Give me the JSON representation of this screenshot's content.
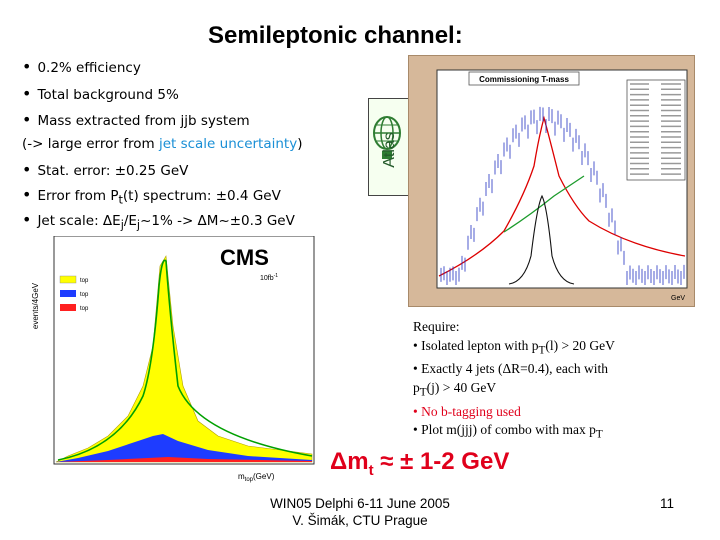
{
  "title": "Semileptonic channel:",
  "bullets": {
    "b1": "0.2% efficiency",
    "b2": "Total background 5%",
    "b3": "Mass extracted from jjb system",
    "b4_prefix": "(-> large error from ",
    "b4_highlight": "jet scale uncertainty",
    "b4_suffix": ")",
    "b5": "Stat. error: ±0.25 GeV",
    "b6_pre": "Error from P",
    "b6_sub": "t",
    "b6_post": "(t) spectrum: ±0.4 GeV",
    "b7_pre": "Jet scale: ΔE",
    "b7_sub1": "j",
    "b7_mid": "/E",
    "b7_sub2": "j",
    "b7_post": "~1% -> ΔM~±0.3 GeV"
  },
  "atlas_label": "Atlas",
  "atlas_plot": {
    "title": "Commissioning T-mass",
    "xlabel": "GeV",
    "x_ticks": [
      "0",
      "50",
      "100",
      "150",
      "200",
      "250",
      "300",
      "350"
    ],
    "y_ticks": [
      "20",
      "40",
      "60",
      "80",
      "100",
      "120",
      "140",
      "160",
      "180"
    ],
    "stats_lines": 18
  },
  "cms_plot": {
    "logo": "CMS",
    "lumi": "10fb",
    "lumi_sup": "-1",
    "ylabel": "events/4GeV",
    "xlabel": "m",
    "xlabel_sub": "top",
    "xlabel_unit": "(GeV)",
    "legend": [
      {
        "label": "top",
        "color": "#ffff00"
      },
      {
        "label": "top",
        "color": "#1e3cff"
      },
      {
        "label": "top",
        "color": "#ff2020"
      }
    ]
  },
  "require": {
    "heading": "Require:",
    "l1_pre": "• Isolated lepton with p",
    "l1_sub": "T",
    "l1_post": "(l) > 20 GeV",
    "l2": "• Exactly 4 jets (ΔR=0.4), each with",
    "l3_pre": "p",
    "l3_sub": "T",
    "l3_post": "(j) > 40 GeV",
    "l4": "• No b-tagging used",
    "l5_pre": "• Plot m(jjj) of combo with max p",
    "l5_sub": "T"
  },
  "result": {
    "pre": "Δm",
    "sub": "t",
    "post": " ≈ ± 1-2 GeV"
  },
  "footer": {
    "line1": "WIN05  Delphi 6-11 June 2005",
    "line2": "V. Šimák, CTU Prague"
  },
  "page_number": "11",
  "colors": {
    "highlight_blue": "#1a8fd6",
    "highlight_red": "#e0001b",
    "atlas_bg": "#d6b89a"
  }
}
